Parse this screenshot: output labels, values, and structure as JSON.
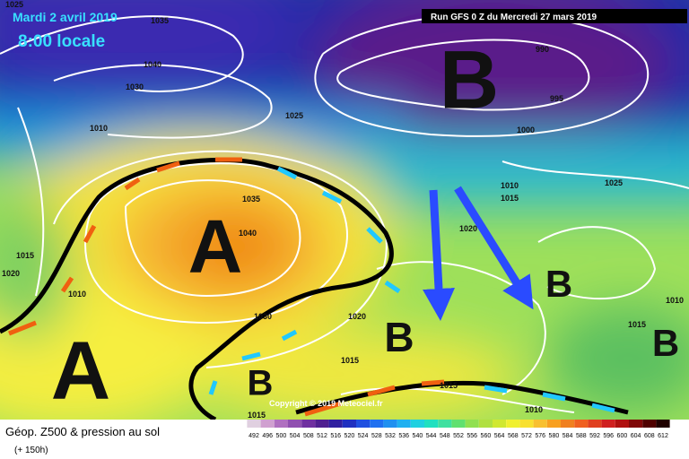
{
  "header": {
    "date": "Mardi 2 avril 2019",
    "time": "8:00 locale",
    "run": "Run GFS 0 Z du Mercredi 27 mars 2019"
  },
  "pressure_centers": [
    "A",
    "A",
    "B",
    "B",
    "B",
    "B",
    "B"
  ],
  "isobar_labels": [
    1025,
    1035,
    1040,
    1030,
    1010,
    1025,
    1035,
    1040,
    1015,
    1020,
    1010,
    1030,
    1020,
    1015,
    990,
    995,
    1000,
    1010,
    1015,
    1025,
    1020,
    1015,
    1010,
    1015,
    1010,
    1015
  ],
  "footer": {
    "title": "Géop. Z500 & pression au sol",
    "lead": "(+ 150h)",
    "copyright": "Copyright © 2019 Meteociel.fr"
  },
  "colorbar": [
    492,
    496,
    500,
    504,
    508,
    512,
    516,
    520,
    524,
    528,
    532,
    536,
    540,
    544,
    548,
    552,
    556,
    560,
    564,
    568,
    572,
    576,
    580,
    584,
    588,
    592,
    596,
    600,
    604,
    608,
    612
  ]
}
